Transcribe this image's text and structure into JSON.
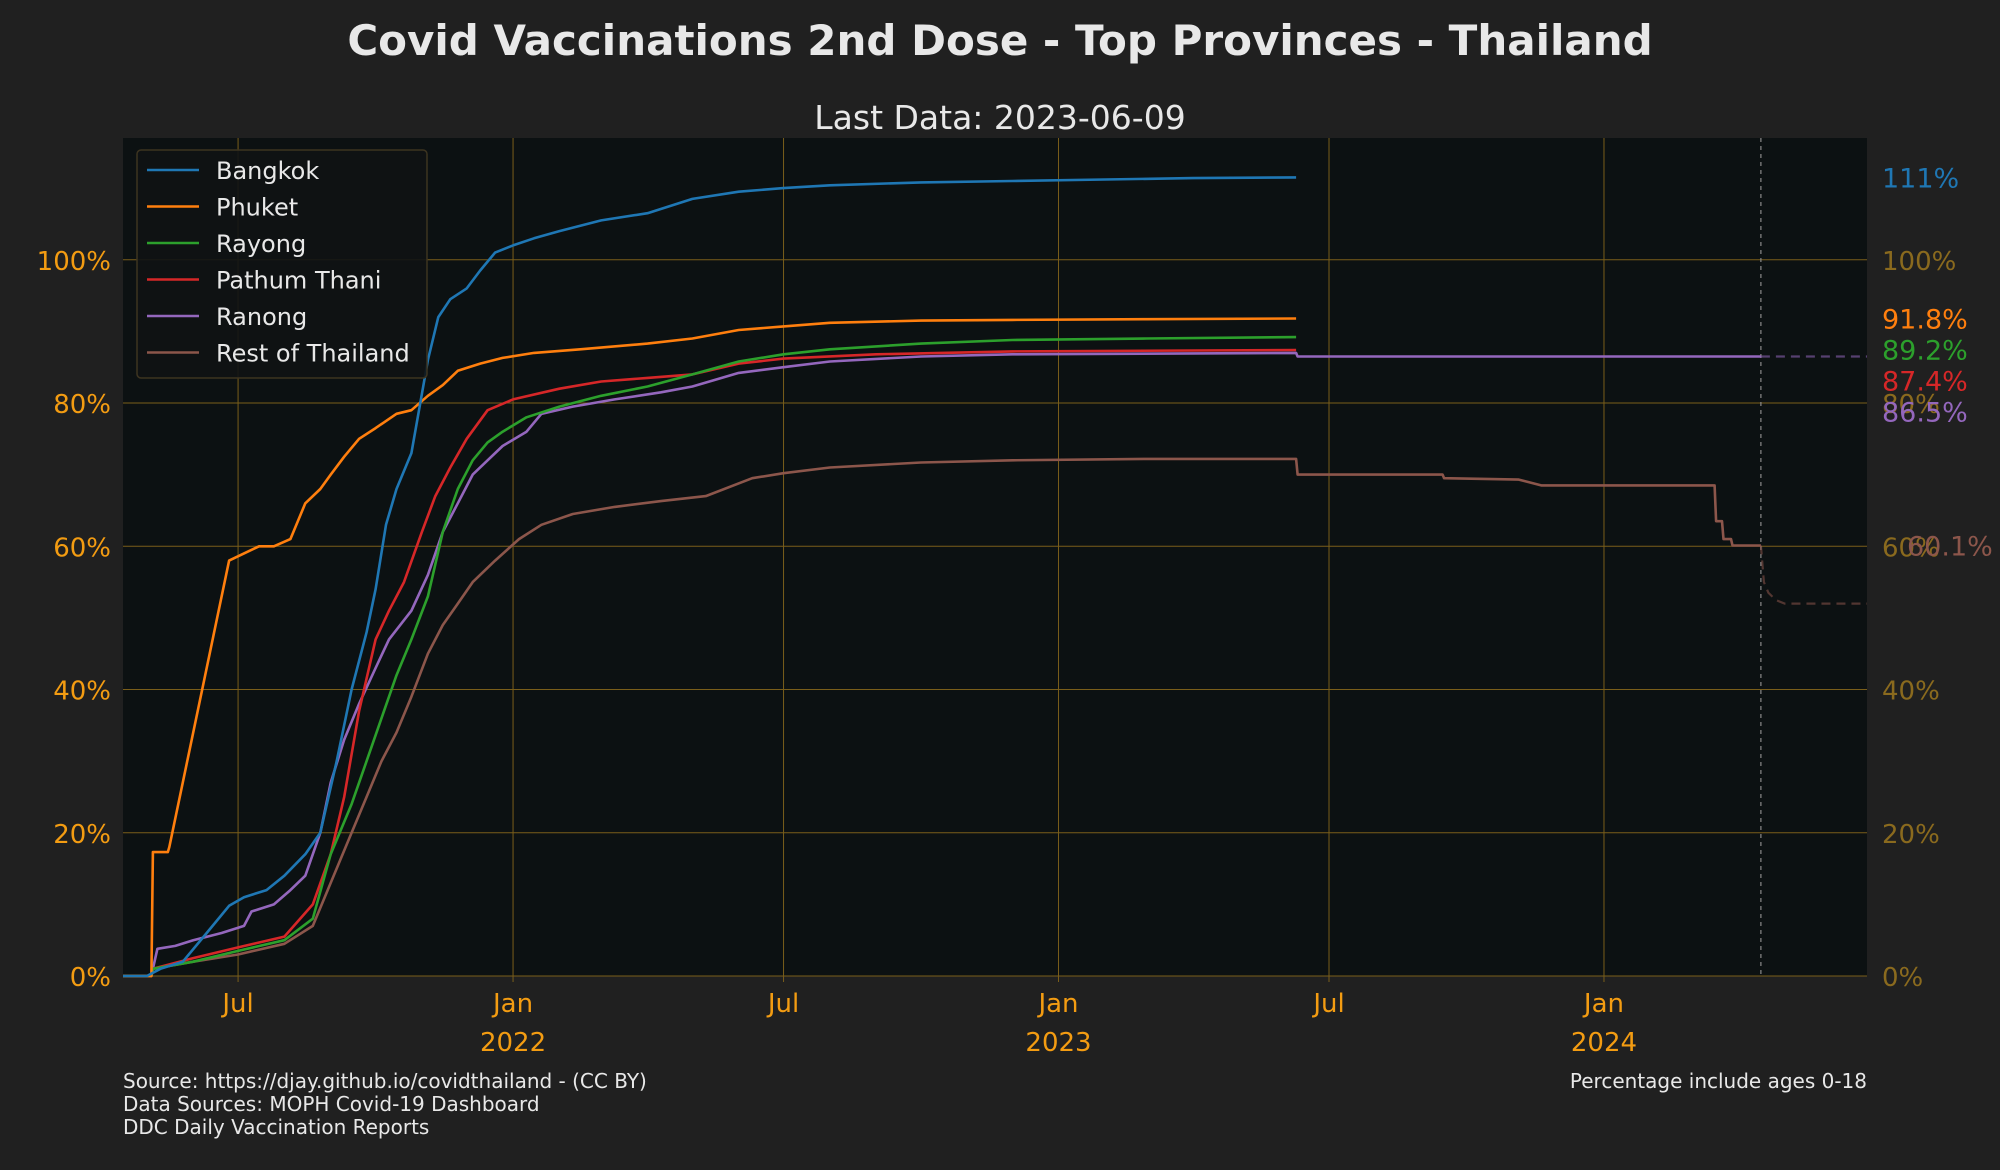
{
  "chart_data": {
    "type": "line",
    "title": "Covid Vaccinations 2nd Dose - Top Provinces - Thailand",
    "subtitle": "Last Data: 2023-06-09",
    "ylim": [
      0,
      117
    ],
    "xlim": [
      "2021-04-15",
      "2024-06-25"
    ],
    "y_ticks": [
      {
        "value": 0,
        "label": "0%"
      },
      {
        "value": 20,
        "label": "20%"
      },
      {
        "value": 40,
        "label": "40%"
      },
      {
        "value": 60,
        "label": "60%"
      },
      {
        "value": 80,
        "label": "80%"
      },
      {
        "value": 100,
        "label": "100%"
      }
    ],
    "x_ticks": [
      {
        "date": "2021-07-01",
        "label": "Jul",
        "sublabel": ""
      },
      {
        "date": "2022-01-01",
        "label": "Jan",
        "sublabel": "2022"
      },
      {
        "date": "2022-07-01",
        "label": "Jul",
        "sublabel": ""
      },
      {
        "date": "2023-01-01",
        "label": "Jan",
        "sublabel": "2023"
      },
      {
        "date": "2023-07-01",
        "label": "Jul",
        "sublabel": ""
      },
      {
        "date": "2024-01-01",
        "label": "Jan",
        "sublabel": "2024"
      }
    ],
    "grid": true,
    "legend_position": "top-left",
    "forecast_start": "2024-04-15",
    "series": [
      {
        "name": "Bangkok",
        "color": "#1f77b4",
        "end_label": "111%",
        "end_value": 111.5,
        "points": [
          [
            "2021-04-15",
            0
          ],
          [
            "2021-05-01",
            0
          ],
          [
            "2021-05-10",
            1
          ],
          [
            "2021-05-25",
            2
          ],
          [
            "2021-06-10",
            6
          ],
          [
            "2021-06-25",
            9.8
          ],
          [
            "2021-07-05",
            11
          ],
          [
            "2021-07-20",
            12
          ],
          [
            "2021-08-01",
            14
          ],
          [
            "2021-08-15",
            17
          ],
          [
            "2021-08-25",
            20
          ],
          [
            "2021-09-05",
            30
          ],
          [
            "2021-09-15",
            40
          ],
          [
            "2021-09-25",
            48
          ],
          [
            "2021-10-01",
            54
          ],
          [
            "2021-10-08",
            63
          ],
          [
            "2021-10-15",
            68
          ],
          [
            "2021-10-25",
            73
          ],
          [
            "2021-11-05",
            86
          ],
          [
            "2021-11-12",
            92
          ],
          [
            "2021-11-20",
            94.5
          ],
          [
            "2021-12-01",
            96
          ],
          [
            "2021-12-10",
            98.5
          ],
          [
            "2021-12-20",
            101
          ],
          [
            "2022-01-01",
            102
          ],
          [
            "2022-01-15",
            103
          ],
          [
            "2022-02-01",
            104
          ],
          [
            "2022-03-01",
            105.5
          ],
          [
            "2022-04-01",
            106.5
          ],
          [
            "2022-05-01",
            108.5
          ],
          [
            "2022-06-01",
            109.5
          ],
          [
            "2022-07-01",
            110
          ],
          [
            "2022-08-01",
            110.4
          ],
          [
            "2022-10-01",
            110.8
          ],
          [
            "2022-12-01",
            111
          ],
          [
            "2023-02-01",
            111.2
          ],
          [
            "2023-04-01",
            111.4
          ],
          [
            "2023-06-09",
            111.5
          ]
        ]
      },
      {
        "name": "Phuket",
        "color": "#ff7f0e",
        "end_label": "91.8%",
        "end_value": 91.8,
        "points": [
          [
            "2021-04-15",
            0
          ],
          [
            "2021-05-04",
            0
          ],
          [
            "2021-05-05",
            17.3
          ],
          [
            "2021-05-15",
            17.3
          ],
          [
            "2021-05-16",
            18
          ],
          [
            "2021-06-25",
            58
          ],
          [
            "2021-07-05",
            59
          ],
          [
            "2021-07-15",
            60
          ],
          [
            "2021-07-25",
            60
          ],
          [
            "2021-08-05",
            61
          ],
          [
            "2021-08-15",
            66
          ],
          [
            "2021-08-25",
            68
          ],
          [
            "2021-09-01",
            70
          ],
          [
            "2021-09-10",
            72.5
          ],
          [
            "2021-09-20",
            75
          ],
          [
            "2021-10-01",
            76.5
          ],
          [
            "2021-10-15",
            78.5
          ],
          [
            "2021-10-25",
            79
          ],
          [
            "2021-11-05",
            81
          ],
          [
            "2021-11-15",
            82.5
          ],
          [
            "2021-11-25",
            84.5
          ],
          [
            "2021-12-10",
            85.5
          ],
          [
            "2021-12-25",
            86.3
          ],
          [
            "2022-01-15",
            87
          ],
          [
            "2022-02-15",
            87.5
          ],
          [
            "2022-04-01",
            88.3
          ],
          [
            "2022-05-01",
            89
          ],
          [
            "2022-06-01",
            90.2
          ],
          [
            "2022-07-01",
            90.7
          ],
          [
            "2022-08-01",
            91.2
          ],
          [
            "2022-10-01",
            91.5
          ],
          [
            "2022-12-01",
            91.6
          ],
          [
            "2023-03-01",
            91.7
          ],
          [
            "2023-06-09",
            91.8
          ]
        ]
      },
      {
        "name": "Rayong",
        "color": "#2ca02c",
        "end_label": "89.2%",
        "end_value": 89.2,
        "points": [
          [
            "2021-04-15",
            0
          ],
          [
            "2021-05-04",
            0
          ],
          [
            "2021-05-05",
            1
          ],
          [
            "2021-06-01",
            2
          ],
          [
            "2021-07-01",
            3.5
          ],
          [
            "2021-08-01",
            5
          ],
          [
            "2021-08-20",
            8
          ],
          [
            "2021-09-01",
            17
          ],
          [
            "2021-09-15",
            24
          ],
          [
            "2021-09-25",
            30
          ],
          [
            "2021-10-05",
            36
          ],
          [
            "2021-10-15",
            42
          ],
          [
            "2021-10-25",
            47
          ],
          [
            "2021-11-05",
            53
          ],
          [
            "2021-11-15",
            62
          ],
          [
            "2021-11-25",
            68
          ],
          [
            "2021-12-05",
            72
          ],
          [
            "2021-12-15",
            74.5
          ],
          [
            "2021-12-25",
            76
          ],
          [
            "2022-01-10",
            78
          ],
          [
            "2022-02-01",
            79.5
          ],
          [
            "2022-03-01",
            81
          ],
          [
            "2022-04-01",
            82.3
          ],
          [
            "2022-05-01",
            84
          ],
          [
            "2022-06-01",
            85.8
          ],
          [
            "2022-07-01",
            86.8
          ],
          [
            "2022-08-01",
            87.5
          ],
          [
            "2022-10-01",
            88.3
          ],
          [
            "2022-12-01",
            88.8
          ],
          [
            "2023-03-01",
            89
          ],
          [
            "2023-06-09",
            89.2
          ]
        ]
      },
      {
        "name": "Pathum Thani",
        "color": "#d62728",
        "end_label": "87.4%",
        "end_value": 87.4,
        "points": [
          [
            "2021-04-15",
            0
          ],
          [
            "2021-05-04",
            0
          ],
          [
            "2021-05-05",
            1
          ],
          [
            "2021-06-01",
            2.5
          ],
          [
            "2021-07-01",
            4
          ],
          [
            "2021-08-01",
            5.5
          ],
          [
            "2021-08-20",
            10
          ],
          [
            "2021-09-01",
            17
          ],
          [
            "2021-09-10",
            25
          ],
          [
            "2021-09-20",
            37
          ],
          [
            "2021-10-01",
            47
          ],
          [
            "2021-10-10",
            51
          ],
          [
            "2021-10-20",
            55
          ],
          [
            "2021-11-01",
            62
          ],
          [
            "2021-11-10",
            67
          ],
          [
            "2021-11-20",
            71
          ],
          [
            "2021-12-01",
            75
          ],
          [
            "2021-12-15",
            79
          ],
          [
            "2022-01-01",
            80.5
          ],
          [
            "2022-02-01",
            82
          ],
          [
            "2022-03-01",
            83
          ],
          [
            "2022-04-01",
            83.5
          ],
          [
            "2022-05-01",
            84
          ],
          [
            "2022-06-01",
            85.5
          ],
          [
            "2022-07-01",
            86.2
          ],
          [
            "2022-09-01",
            86.8
          ],
          [
            "2022-12-01",
            87.2
          ],
          [
            "2023-06-09",
            87.4
          ]
        ]
      },
      {
        "name": "Ranong",
        "color": "#9467bd",
        "end_label": "86.5%",
        "end_value": 86.5,
        "points": [
          [
            "2021-04-15",
            0
          ],
          [
            "2021-05-04",
            0
          ],
          [
            "2021-05-05",
            1
          ],
          [
            "2021-05-08",
            3.8
          ],
          [
            "2021-05-20",
            4.2
          ],
          [
            "2021-06-01",
            5
          ],
          [
            "2021-06-20",
            6
          ],
          [
            "2021-07-05",
            7
          ],
          [
            "2021-07-10",
            9
          ],
          [
            "2021-07-25",
            10
          ],
          [
            "2021-08-05",
            12
          ],
          [
            "2021-08-15",
            14
          ],
          [
            "2021-08-25",
            20
          ],
          [
            "2021-09-01",
            27
          ],
          [
            "2021-09-10",
            33
          ],
          [
            "2021-09-20",
            38
          ],
          [
            "2021-10-01",
            43
          ],
          [
            "2021-10-10",
            47
          ],
          [
            "2021-10-25",
            51
          ],
          [
            "2021-11-05",
            56
          ],
          [
            "2021-11-15",
            62
          ],
          [
            "2021-11-25",
            66
          ],
          [
            "2021-12-05",
            70
          ],
          [
            "2021-12-15",
            72
          ],
          [
            "2021-12-25",
            74
          ],
          [
            "2022-01-10",
            76
          ],
          [
            "2022-01-20",
            78.5
          ],
          [
            "2022-02-10",
            79.5
          ],
          [
            "2022-03-10",
            80.5
          ],
          [
            "2022-04-10",
            81.5
          ],
          [
            "2022-05-01",
            82.3
          ],
          [
            "2022-06-01",
            84.2
          ],
          [
            "2022-07-01",
            85
          ],
          [
            "2022-08-01",
            85.8
          ],
          [
            "2022-10-01",
            86.5
          ],
          [
            "2022-12-01",
            86.8
          ],
          [
            "2023-06-09",
            87
          ],
          [
            "2023-06-10",
            86.5
          ],
          [
            "2024-04-15",
            86.5
          ]
        ]
      },
      {
        "name": "Rest of Thailand",
        "color": "#8c564b",
        "end_label": "60.1%",
        "end_value": 60.1,
        "points": [
          [
            "2021-04-15",
            0
          ],
          [
            "2021-05-04",
            0
          ],
          [
            "2021-05-05",
            1
          ],
          [
            "2021-06-01",
            2
          ],
          [
            "2021-07-01",
            3
          ],
          [
            "2021-08-01",
            4.5
          ],
          [
            "2021-08-20",
            7
          ],
          [
            "2021-09-01",
            13
          ],
          [
            "2021-09-15",
            20
          ],
          [
            "2021-09-25",
            25
          ],
          [
            "2021-10-05",
            30
          ],
          [
            "2021-10-15",
            34
          ],
          [
            "2021-10-25",
            39
          ],
          [
            "2021-11-05",
            45
          ],
          [
            "2021-11-15",
            49
          ],
          [
            "2021-11-25",
            52
          ],
          [
            "2021-12-05",
            55
          ],
          [
            "2021-12-20",
            58
          ],
          [
            "2022-01-05",
            61
          ],
          [
            "2022-01-20",
            63
          ],
          [
            "2022-02-10",
            64.5
          ],
          [
            "2022-03-10",
            65.5
          ],
          [
            "2022-04-10",
            66.3
          ],
          [
            "2022-05-10",
            67
          ],
          [
            "2022-06-10",
            69.5
          ],
          [
            "2022-07-01",
            70.2
          ],
          [
            "2022-08-01",
            71
          ],
          [
            "2022-10-01",
            71.7
          ],
          [
            "2022-12-01",
            72
          ],
          [
            "2023-03-01",
            72.2
          ],
          [
            "2023-06-09",
            72.2
          ],
          [
            "2023-06-10",
            70
          ],
          [
            "2023-09-15",
            70
          ],
          [
            "2023-09-16",
            69.5
          ],
          [
            "2023-11-05",
            69.3
          ],
          [
            "2023-11-20",
            68.5
          ],
          [
            "2024-03-15",
            68.5
          ],
          [
            "2024-03-16",
            63.5
          ],
          [
            "2024-03-20",
            63.5
          ],
          [
            "2024-03-21",
            61
          ],
          [
            "2024-03-26",
            61
          ],
          [
            "2024-03-27",
            60.1
          ],
          [
            "2024-04-15",
            60.1
          ]
        ]
      }
    ],
    "forecast_series": [
      {
        "name": "Ranong",
        "color": "#9467bd",
        "points": [
          [
            "2024-04-15",
            86.5
          ],
          [
            "2024-06-25",
            86.5
          ]
        ]
      },
      {
        "name": "Rest of Thailand",
        "color": "#8c564b",
        "points": [
          [
            "2024-04-15",
            60.1
          ],
          [
            "2024-04-17",
            55
          ],
          [
            "2024-04-20",
            53.5
          ],
          [
            "2024-04-25",
            52.5
          ],
          [
            "2024-05-01",
            52
          ],
          [
            "2024-06-25",
            52
          ]
        ]
      }
    ],
    "right_axis_label_values": [
      {
        "value": 100,
        "label": "100%"
      },
      {
        "value": 80,
        "label": "80%"
      },
      {
        "value": 60,
        "label": "60%"
      },
      {
        "value": 40,
        "label": "40%"
      },
      {
        "value": 20,
        "label": "20%"
      },
      {
        "value": 0,
        "label": "0%"
      }
    ]
  },
  "footer": {
    "source_lines": [
      "Source: https://djay.github.io/covidthailand - (CC BY)",
      "Data Sources: MOPH Covid-19 Dashboard",
      "  DDC Daily Vaccination Reports"
    ],
    "note": "Percentage include ages 0-18"
  },
  "colors": {
    "background": "#202020",
    "plot_background": "#0c1112",
    "grid": "#7a5e1a",
    "axis_text": "#f39c12"
  }
}
